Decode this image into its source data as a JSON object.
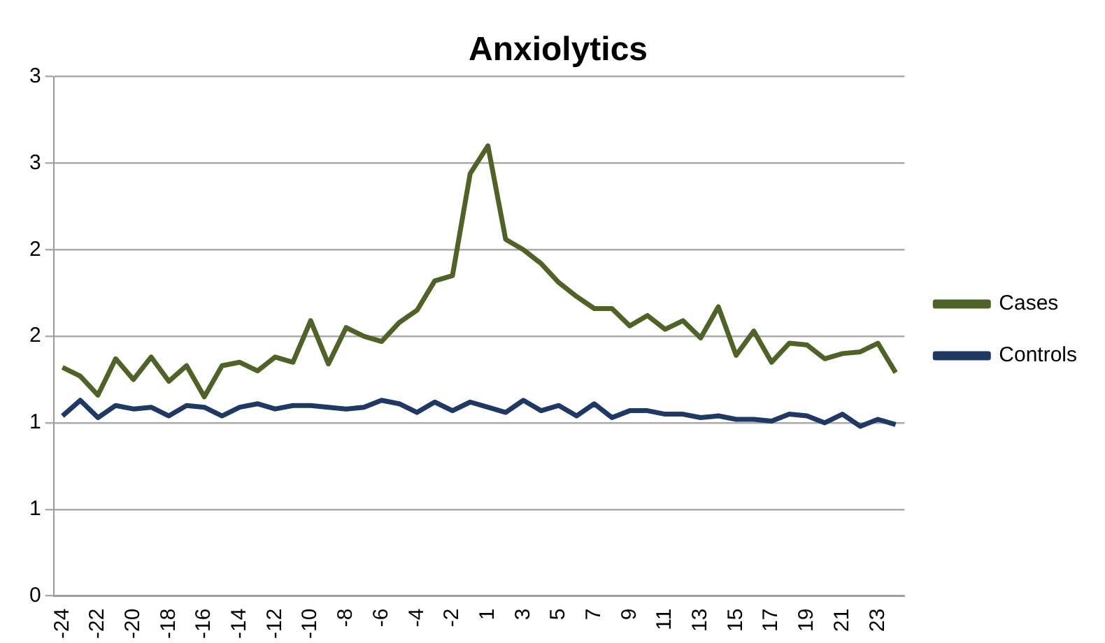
{
  "chart_data": {
    "type": "line",
    "title": "Anxiolytics",
    "categories": [
      "-24",
      null,
      "-22",
      null,
      "-20",
      null,
      "-18",
      null,
      "-16",
      null,
      "-14",
      null,
      "-12",
      null,
      "-10",
      null,
      "-8",
      null,
      "-6",
      null,
      "-4",
      null,
      "-2",
      null,
      "1",
      null,
      "3",
      null,
      "5",
      null,
      "7",
      null,
      "9",
      null,
      "11",
      null,
      "13",
      null,
      "15",
      null,
      "17",
      null,
      "19",
      null,
      "21",
      null,
      "23",
      null
    ],
    "series": [
      {
        "name": "Cases",
        "color": "#4f6228",
        "values": [
          1.32,
          1.27,
          1.16,
          1.37,
          1.25,
          1.38,
          1.24,
          1.33,
          1.15,
          1.33,
          1.35,
          1.3,
          1.38,
          1.35,
          1.59,
          1.34,
          1.55,
          1.5,
          1.47,
          1.58,
          1.65,
          1.82,
          1.85,
          2.44,
          2.6,
          2.06,
          2.0,
          1.92,
          1.81,
          1.73,
          1.66,
          1.66,
          1.56,
          1.62,
          1.54,
          1.59,
          1.49,
          1.67,
          1.39,
          1.53,
          1.35,
          1.46,
          1.45,
          1.37,
          1.4,
          1.41,
          1.46,
          1.29
        ]
      },
      {
        "name": "Controls",
        "color": "#1f3864",
        "values": [
          1.04,
          1.13,
          1.03,
          1.1,
          1.08,
          1.09,
          1.04,
          1.1,
          1.09,
          1.04,
          1.09,
          1.11,
          1.08,
          1.1,
          1.1,
          1.09,
          1.08,
          1.09,
          1.13,
          1.11,
          1.06,
          1.12,
          1.07,
          1.12,
          1.09,
          1.06,
          1.13,
          1.07,
          1.1,
          1.04,
          1.11,
          1.03,
          1.07,
          1.07,
          1.05,
          1.05,
          1.03,
          1.04,
          1.02,
          1.02,
          1.01,
          1.05,
          1.04,
          1.0,
          1.05,
          0.98,
          1.02,
          0.99
        ]
      }
    ],
    "ylim": [
      0,
      3
    ],
    "yticks": [
      0,
      {
        "value": 0.5,
        "label": "1"
      },
      1,
      {
        "value": 1.5,
        "label": "2"
      },
      2,
      {
        "value": 2.5,
        "label": "3"
      },
      3
    ],
    "grid": "y",
    "legend": "right",
    "marker": "none",
    "line_style": "solid"
  }
}
